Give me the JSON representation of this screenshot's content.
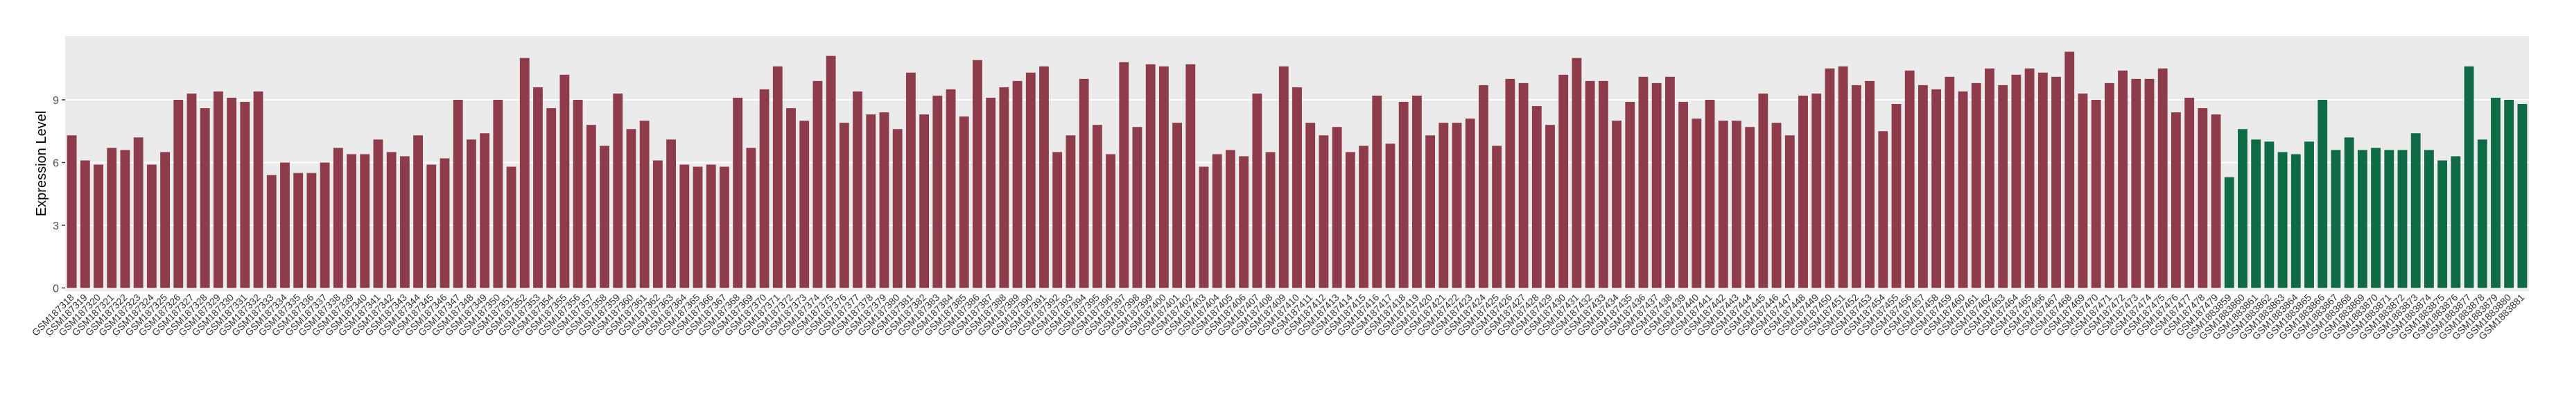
{
  "chart_data": {
    "type": "bar",
    "y_label": "Expression Level",
    "ylim": [
      -0.15,
      12.05
    ],
    "yticks": [
      0,
      3,
      6,
      9
    ],
    "grid": true,
    "categories": [
      "GSM187318",
      "GSM187319",
      "GSM187320",
      "GSM187321",
      "GSM187322",
      "GSM187323",
      "GSM187324",
      "GSM187325",
      "GSM187326",
      "GSM187327",
      "GSM187328",
      "GSM187329",
      "GSM187330",
      "GSM187331",
      "GSM187332",
      "GSM187333",
      "GSM187334",
      "GSM187335",
      "GSM187336",
      "GSM187337",
      "GSM187338",
      "GSM187339",
      "GSM187340",
      "GSM187341",
      "GSM187342",
      "GSM187343",
      "GSM187344",
      "GSM187345",
      "GSM187346",
      "GSM187347",
      "GSM187348",
      "GSM187349",
      "GSM187350",
      "GSM187351",
      "GSM187352",
      "GSM187353",
      "GSM187354",
      "GSM187355",
      "GSM187356",
      "GSM187357",
      "GSM187358",
      "GSM187359",
      "GSM187360",
      "GSM187361",
      "GSM187362",
      "GSM187363",
      "GSM187364",
      "GSM187365",
      "GSM187366",
      "GSM187367",
      "GSM187368",
      "GSM187369",
      "GSM187370",
      "GSM187371",
      "GSM187372",
      "GSM187373",
      "GSM187374",
      "GSM187375",
      "GSM187376",
      "GSM187377",
      "GSM187378",
      "GSM187379",
      "GSM187380",
      "GSM187381",
      "GSM187382",
      "GSM187383",
      "GSM187384",
      "GSM187385",
      "GSM187386",
      "GSM187387",
      "GSM187388",
      "GSM187389",
      "GSM187390",
      "GSM187391",
      "GSM187392",
      "GSM187393",
      "GSM187394",
      "GSM187395",
      "GSM187396",
      "GSM187397",
      "GSM187398",
      "GSM187399",
      "GSM187400",
      "GSM187401",
      "GSM187402",
      "GSM187403",
      "GSM187404",
      "GSM187405",
      "GSM187406",
      "GSM187407",
      "GSM187408",
      "GSM187409",
      "GSM187410",
      "GSM187411",
      "GSM187412",
      "GSM187413",
      "GSM187414",
      "GSM187415",
      "GSM187416",
      "GSM187417",
      "GSM187418",
      "GSM187419",
      "GSM187420",
      "GSM187421",
      "GSM187422",
      "GSM187423",
      "GSM187424",
      "GSM187425",
      "GSM187426",
      "GSM187427",
      "GSM187428",
      "GSM187429",
      "GSM187430",
      "GSM187431",
      "GSM187432",
      "GSM187433",
      "GSM187434",
      "GSM187435",
      "GSM187436",
      "GSM187437",
      "GSM187438",
      "GSM187439",
      "GSM187440",
      "GSM187441",
      "GSM187442",
      "GSM187443",
      "GSM187444",
      "GSM187445",
      "GSM187446",
      "GSM187447",
      "GSM187448",
      "GSM187449",
      "GSM187450",
      "GSM187451",
      "GSM187452",
      "GSM187453",
      "GSM187454",
      "GSM187455",
      "GSM187456",
      "GSM187457",
      "GSM187458",
      "GSM187459",
      "GSM187460",
      "GSM187461",
      "GSM187462",
      "GSM187463",
      "GSM187464",
      "GSM187465",
      "GSM187466",
      "GSM187467",
      "GSM187468",
      "GSM187469",
      "GSM187470",
      "GSM187471",
      "GSM187472",
      "GSM187473",
      "GSM187474",
      "GSM187475",
      "GSM187476",
      "GSM187477",
      "GSM187478",
      "GSM187479",
      "GSM1883859",
      "GSM1883860",
      "GSM1883861",
      "GSM1883862",
      "GSM1883863",
      "GSM1883864",
      "GSM1883865",
      "GSM1883866",
      "GSM1883867",
      "GSM1883868",
      "GSM1883869",
      "GSM1883870",
      "GSM1883871",
      "GSM1883872",
      "GSM1883873",
      "GSM1883874",
      "GSM1883875",
      "GSM1883876",
      "GSM1883877",
      "GSM1883878",
      "GSM1883879",
      "GSM1883880",
      "GSM1883881"
    ],
    "values": [
      7.3,
      6.1,
      5.9,
      6.7,
      6.6,
      7.2,
      5.9,
      6.5,
      9.0,
      9.3,
      8.6,
      9.4,
      9.1,
      8.9,
      9.4,
      5.4,
      6.0,
      5.5,
      5.5,
      6.0,
      6.7,
      6.4,
      6.4,
      7.1,
      6.5,
      6.3,
      7.3,
      5.9,
      6.2,
      9.0,
      7.1,
      7.4,
      9.0,
      5.8,
      11.0,
      9.6,
      8.6,
      10.2,
      9.0,
      7.8,
      6.8,
      9.3,
      7.6,
      8.0,
      6.1,
      7.1,
      5.9,
      5.8,
      5.9,
      5.8,
      9.1,
      6.7,
      9.5,
      10.6,
      8.6,
      8.0,
      9.9,
      11.1,
      7.9,
      9.4,
      8.3,
      8.4,
      7.6,
      10.3,
      8.3,
      9.2,
      9.5,
      8.2,
      10.9,
      9.1,
      9.6,
      9.9,
      10.3,
      10.6,
      6.5,
      7.3,
      10.0,
      7.8,
      6.4,
      10.8,
      7.7,
      10.7,
      10.6,
      7.9,
      10.7,
      5.8,
      6.4,
      6.6,
      6.3,
      9.3,
      6.5,
      10.6,
      9.6,
      7.9,
      7.3,
      7.7,
      6.5,
      6.8,
      9.2,
      6.9,
      8.9,
      9.2,
      7.3,
      7.9,
      7.9,
      8.1,
      9.7,
      6.8,
      10.0,
      9.8,
      8.7,
      7.8,
      10.2,
      11.0,
      9.9,
      9.9,
      8.0,
      8.9,
      10.1,
      9.8,
      10.1,
      8.9,
      8.1,
      9.0,
      8.0,
      8.0,
      7.7,
      9.3,
      7.9,
      7.3,
      9.2,
      9.3,
      10.5,
      10.6,
      9.7,
      9.9,
      7.5,
      8.8,
      10.4,
      9.7,
      9.5,
      10.1,
      9.4,
      9.8,
      10.5,
      9.7,
      10.2,
      10.5,
      10.3,
      10.1,
      11.3,
      9.3,
      9.0,
      9.8,
      10.4,
      10.0,
      10.0,
      10.5,
      8.4,
      9.1,
      8.6,
      8.3,
      5.3,
      7.6,
      7.1,
      7.0,
      6.5,
      6.4,
      7.0,
      9.0,
      6.6,
      7.2,
      6.6,
      6.7,
      6.6,
      6.6,
      7.4,
      6.6,
      6.1,
      6.3,
      10.6,
      7.1,
      9.1,
      9.0,
      8.8
    ],
    "colors": [
      "#8e3b4b",
      "#8e3b4b",
      "#8e3b4b",
      "#8e3b4b",
      "#8e3b4b",
      "#8e3b4b",
      "#8e3b4b",
      "#8e3b4b",
      "#8e3b4b",
      "#8e3b4b",
      "#8e3b4b",
      "#8e3b4b",
      "#8e3b4b",
      "#8e3b4b",
      "#8e3b4b",
      "#8e3b4b",
      "#8e3b4b",
      "#8e3b4b",
      "#8e3b4b",
      "#8e3b4b",
      "#8e3b4b",
      "#8e3b4b",
      "#8e3b4b",
      "#8e3b4b",
      "#8e3b4b",
      "#8e3b4b",
      "#8e3b4b",
      "#8e3b4b",
      "#8e3b4b",
      "#8e3b4b",
      "#8e3b4b",
      "#8e3b4b",
      "#8e3b4b",
      "#8e3b4b",
      "#8e3b4b",
      "#8e3b4b",
      "#8e3b4b",
      "#8e3b4b",
      "#8e3b4b",
      "#8e3b4b",
      "#8e3b4b",
      "#8e3b4b",
      "#8e3b4b",
      "#8e3b4b",
      "#8e3b4b",
      "#8e3b4b",
      "#8e3b4b",
      "#8e3b4b",
      "#8e3b4b",
      "#8e3b4b",
      "#8e3b4b",
      "#8e3b4b",
      "#8e3b4b",
      "#8e3b4b",
      "#8e3b4b",
      "#8e3b4b",
      "#8e3b4b",
      "#8e3b4b",
      "#8e3b4b",
      "#8e3b4b",
      "#8e3b4b",
      "#8e3b4b",
      "#8e3b4b",
      "#8e3b4b",
      "#8e3b4b",
      "#8e3b4b",
      "#8e3b4b",
      "#8e3b4b",
      "#8e3b4b",
      "#8e3b4b",
      "#8e3b4b",
      "#8e3b4b",
      "#8e3b4b",
      "#8e3b4b",
      "#8e3b4b",
      "#8e3b4b",
      "#8e3b4b",
      "#8e3b4b",
      "#8e3b4b",
      "#8e3b4b",
      "#8e3b4b",
      "#8e3b4b",
      "#8e3b4b",
      "#8e3b4b",
      "#8e3b4b",
      "#8e3b4b",
      "#8e3b4b",
      "#8e3b4b",
      "#8e3b4b",
      "#8e3b4b",
      "#8e3b4b",
      "#8e3b4b",
      "#8e3b4b",
      "#8e3b4b",
      "#8e3b4b",
      "#8e3b4b",
      "#8e3b4b",
      "#8e3b4b",
      "#8e3b4b",
      "#8e3b4b",
      "#8e3b4b",
      "#8e3b4b",
      "#8e3b4b",
      "#8e3b4b",
      "#8e3b4b",
      "#8e3b4b",
      "#8e3b4b",
      "#8e3b4b",
      "#8e3b4b",
      "#8e3b4b",
      "#8e3b4b",
      "#8e3b4b",
      "#8e3b4b",
      "#8e3b4b",
      "#8e3b4b",
      "#8e3b4b",
      "#8e3b4b",
      "#8e3b4b",
      "#8e3b4b",
      "#8e3b4b",
      "#8e3b4b",
      "#8e3b4b",
      "#8e3b4b",
      "#8e3b4b",
      "#8e3b4b",
      "#8e3b4b",
      "#8e3b4b",
      "#8e3b4b",
      "#8e3b4b",
      "#8e3b4b",
      "#8e3b4b",
      "#8e3b4b",
      "#8e3b4b",
      "#8e3b4b",
      "#8e3b4b",
      "#8e3b4b",
      "#8e3b4b",
      "#8e3b4b",
      "#8e3b4b",
      "#8e3b4b",
      "#8e3b4b",
      "#8e3b4b",
      "#8e3b4b",
      "#8e3b4b",
      "#8e3b4b",
      "#8e3b4b",
      "#8e3b4b",
      "#8e3b4b",
      "#8e3b4b",
      "#8e3b4b",
      "#8e3b4b",
      "#8e3b4b",
      "#8e3b4b",
      "#8e3b4b",
      "#8e3b4b",
      "#8e3b4b",
      "#8e3b4b",
      "#8e3b4b",
      "#8e3b4b",
      "#8e3b4b",
      "#8e3b4b",
      "#8e3b4b",
      "#0e6b45",
      "#0e6b45",
      "#0e6b45",
      "#0e6b45",
      "#0e6b45",
      "#0e6b45",
      "#0e6b45",
      "#0e6b45",
      "#0e6b45",
      "#0e6b45",
      "#0e6b45",
      "#0e6b45",
      "#0e6b45",
      "#0e6b45",
      "#0e6b45",
      "#0e6b45",
      "#0e6b45",
      "#0e6b45",
      "#0e6b45",
      "#0e6b45",
      "#0e6b45",
      "#0e6b45",
      "#0e6b45"
    ]
  }
}
